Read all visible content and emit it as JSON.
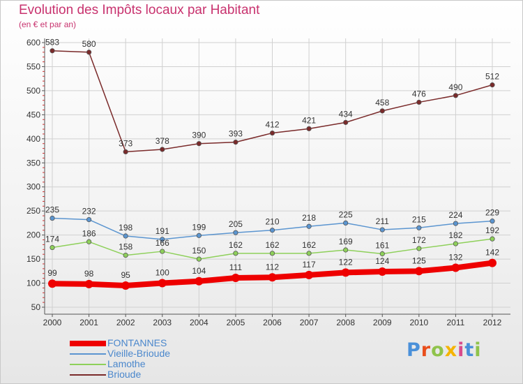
{
  "header": {
    "title": "Evolution des Impôts locaux par Habitant",
    "subtitle": "(en € et par an)"
  },
  "logo": {
    "text": "Proxiti",
    "colors": [
      "#4a90d9",
      "#e94e1b",
      "#8fc34b",
      "#f5b400",
      "#d94b8c",
      "#4a90d9",
      "#8fc34b"
    ]
  },
  "colors": {
    "title": "#c8326e",
    "axis": "#555555",
    "grid": "#d0d0d0",
    "tick": "#cc3333",
    "legend_text": "#4a87cc"
  },
  "chart_data": {
    "type": "line",
    "title": "Evolution des Impôts locaux par Habitant",
    "subtitle": "(en € et par an)",
    "xlabel": "",
    "ylabel": "",
    "x": [
      "2000",
      "2001",
      "2002",
      "2003",
      "2004",
      "2005",
      "2006",
      "2007",
      "2008",
      "2009",
      "2010",
      "2011",
      "2012"
    ],
    "ylim": [
      50,
      600
    ],
    "yticks": [
      50,
      100,
      150,
      200,
      250,
      300,
      350,
      400,
      450,
      500,
      550,
      600
    ],
    "grid": true,
    "legend_position": "bottom-left",
    "series": [
      {
        "name": "FONTANNES",
        "color": "#ee0000",
        "values": [
          99,
          98,
          95,
          100,
          104,
          111,
          112,
          117,
          122,
          124,
          125,
          132,
          142
        ]
      },
      {
        "name": "Vieille-Brioude",
        "color": "#5b95d0",
        "values": [
          235,
          232,
          198,
          191,
          199,
          205,
          210,
          218,
          225,
          211,
          215,
          224,
          229
        ]
      },
      {
        "name": "Lamothe",
        "color": "#8ed05a",
        "values": [
          174,
          186,
          158,
          166,
          150,
          162,
          162,
          162,
          169,
          161,
          172,
          182,
          192
        ]
      },
      {
        "name": "Brioude",
        "color": "#7a2a2a",
        "values": [
          583,
          580,
          373,
          378,
          390,
          393,
          412,
          421,
          434,
          458,
          476,
          490,
          512
        ]
      }
    ],
    "data_labels": {
      "FONTANNES": [
        "99",
        "98",
        "95",
        "100",
        "104",
        "111",
        "112",
        "117",
        "122",
        "124",
        "125",
        "132",
        "142"
      ],
      "Vieille-Brioude": [
        "235",
        "232",
        "198",
        "191",
        "199",
        "205",
        "210",
        "218",
        "225",
        "211",
        "215",
        "224",
        "229"
      ],
      "Lamothe": [
        "174",
        "186",
        "158",
        "166",
        "150",
        "162",
        "162",
        "162",
        "169",
        "161",
        "172",
        "182",
        "192"
      ],
      "Brioude": [
        "583",
        "580",
        "373",
        "378",
        "390",
        "393",
        "412",
        "421",
        "434",
        "458",
        "476",
        "490",
        "512"
      ]
    }
  }
}
